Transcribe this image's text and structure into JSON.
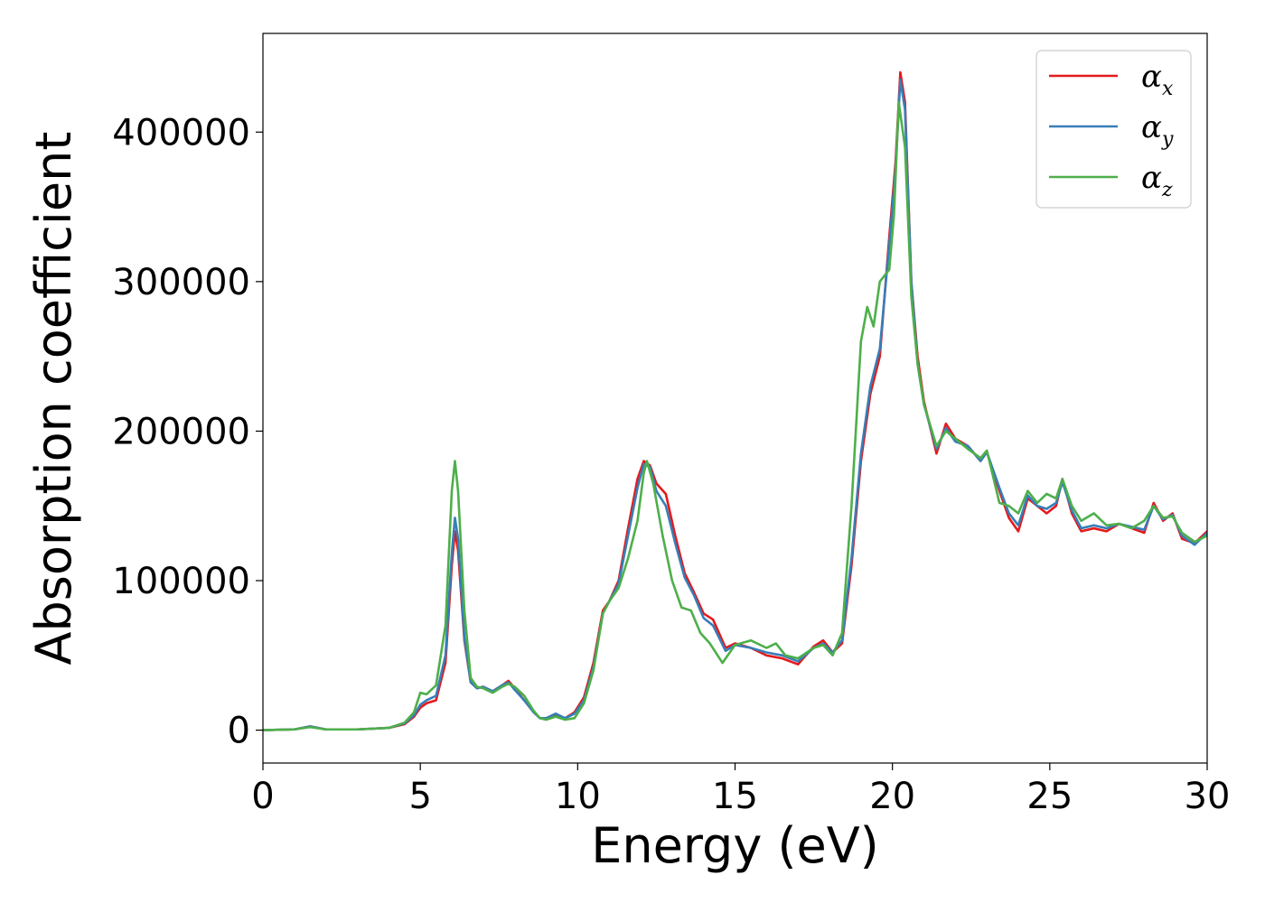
{
  "chart_data": {
    "type": "line",
    "title": "",
    "xlabel": "Energy (eV)",
    "ylabel": "Absorption coefficient",
    "xlim": [
      0,
      30
    ],
    "ylim": [
      -22000,
      466000
    ],
    "xticks": [
      0,
      5,
      10,
      15,
      20,
      25,
      30
    ],
    "xtick_labels": [
      "0",
      "5",
      "10",
      "15",
      "20",
      "25",
      "30"
    ],
    "yticks": [
      0,
      100000,
      200000,
      300000,
      400000
    ],
    "ytick_labels": [
      "0",
      "100000",
      "200000",
      "300000",
      "400000"
    ],
    "grid": false,
    "legend_position": "top-right",
    "series": [
      {
        "name": "α_x",
        "label_main": "α",
        "label_sub": "x",
        "color": "#e41a1c",
        "points": [
          [
            0,
            0
          ],
          [
            1,
            500
          ],
          [
            1.5,
            2500
          ],
          [
            2,
            500
          ],
          [
            3,
            500
          ],
          [
            4,
            1500
          ],
          [
            4.5,
            4000
          ],
          [
            4.8,
            9000
          ],
          [
            5.0,
            15000
          ],
          [
            5.2,
            18000
          ],
          [
            5.5,
            20000
          ],
          [
            5.8,
            45000
          ],
          [
            6.0,
            110000
          ],
          [
            6.1,
            133000
          ],
          [
            6.2,
            120000
          ],
          [
            6.4,
            60000
          ],
          [
            6.6,
            32000
          ],
          [
            6.8,
            28000
          ],
          [
            7.0,
            29000
          ],
          [
            7.3,
            26000
          ],
          [
            7.6,
            30000
          ],
          [
            7.8,
            33000
          ],
          [
            8.0,
            28000
          ],
          [
            8.3,
            20000
          ],
          [
            8.6,
            12000
          ],
          [
            8.8,
            8000
          ],
          [
            9.0,
            8000
          ],
          [
            9.3,
            10000
          ],
          [
            9.6,
            8000
          ],
          [
            9.9,
            12000
          ],
          [
            10.2,
            22000
          ],
          [
            10.5,
            45000
          ],
          [
            10.8,
            80000
          ],
          [
            11.0,
            86000
          ],
          [
            11.3,
            100000
          ],
          [
            11.6,
            135000
          ],
          [
            11.9,
            168000
          ],
          [
            12.1,
            180000
          ],
          [
            12.3,
            177000
          ],
          [
            12.5,
            165000
          ],
          [
            12.8,
            158000
          ],
          [
            13.1,
            130000
          ],
          [
            13.4,
            105000
          ],
          [
            13.7,
            92000
          ],
          [
            14.0,
            78000
          ],
          [
            14.3,
            74000
          ],
          [
            14.7,
            55000
          ],
          [
            15.0,
            58000
          ],
          [
            15.5,
            55000
          ],
          [
            16.0,
            50000
          ],
          [
            16.5,
            48000
          ],
          [
            17.0,
            44000
          ],
          [
            17.5,
            56000
          ],
          [
            17.8,
            60000
          ],
          [
            18.1,
            52000
          ],
          [
            18.4,
            58000
          ],
          [
            18.7,
            110000
          ],
          [
            19.0,
            180000
          ],
          [
            19.3,
            225000
          ],
          [
            19.6,
            250000
          ],
          [
            19.9,
            330000
          ],
          [
            20.1,
            380000
          ],
          [
            20.25,
            440000
          ],
          [
            20.4,
            420000
          ],
          [
            20.6,
            300000
          ],
          [
            20.8,
            250000
          ],
          [
            21.0,
            220000
          ],
          [
            21.4,
            185000
          ],
          [
            21.7,
            205000
          ],
          [
            22.0,
            195000
          ],
          [
            22.4,
            190000
          ],
          [
            22.8,
            180000
          ],
          [
            23.0,
            186000
          ],
          [
            23.4,
            160000
          ],
          [
            23.7,
            142000
          ],
          [
            24.0,
            133000
          ],
          [
            24.3,
            155000
          ],
          [
            24.6,
            150000
          ],
          [
            24.9,
            145000
          ],
          [
            25.2,
            150000
          ],
          [
            25.4,
            168000
          ],
          [
            25.7,
            145000
          ],
          [
            26.0,
            133000
          ],
          [
            26.4,
            135000
          ],
          [
            26.8,
            133000
          ],
          [
            27.2,
            138000
          ],
          [
            27.6,
            135000
          ],
          [
            28.0,
            132000
          ],
          [
            28.3,
            152000
          ],
          [
            28.6,
            140000
          ],
          [
            28.9,
            145000
          ],
          [
            29.2,
            128000
          ],
          [
            29.6,
            125000
          ],
          [
            30.0,
            133000
          ]
        ]
      },
      {
        "name": "α_y",
        "label_main": "α",
        "label_sub": "y",
        "color": "#377eb8",
        "points": [
          [
            0,
            0
          ],
          [
            1,
            500
          ],
          [
            1.5,
            2500
          ],
          [
            2,
            500
          ],
          [
            3,
            500
          ],
          [
            4,
            1500
          ],
          [
            4.5,
            4500
          ],
          [
            4.8,
            10000
          ],
          [
            5.0,
            17000
          ],
          [
            5.2,
            20000
          ],
          [
            5.5,
            23000
          ],
          [
            5.8,
            50000
          ],
          [
            6.0,
            118000
          ],
          [
            6.1,
            142000
          ],
          [
            6.2,
            128000
          ],
          [
            6.4,
            62000
          ],
          [
            6.6,
            32000
          ],
          [
            6.8,
            28000
          ],
          [
            7.0,
            29000
          ],
          [
            7.3,
            26000
          ],
          [
            7.6,
            30000
          ],
          [
            7.8,
            32000
          ],
          [
            8.0,
            27000
          ],
          [
            8.3,
            20000
          ],
          [
            8.6,
            12000
          ],
          [
            8.8,
            8000
          ],
          [
            9.0,
            8000
          ],
          [
            9.3,
            11000
          ],
          [
            9.6,
            8000
          ],
          [
            9.9,
            11000
          ],
          [
            10.2,
            20000
          ],
          [
            10.5,
            42000
          ],
          [
            10.8,
            78000
          ],
          [
            11.0,
            86000
          ],
          [
            11.3,
            98000
          ],
          [
            11.6,
            130000
          ],
          [
            11.9,
            162000
          ],
          [
            12.1,
            178000
          ],
          [
            12.3,
            176000
          ],
          [
            12.5,
            160000
          ],
          [
            12.8,
            150000
          ],
          [
            13.1,
            125000
          ],
          [
            13.4,
            102000
          ],
          [
            13.7,
            90000
          ],
          [
            14.0,
            75000
          ],
          [
            14.3,
            70000
          ],
          [
            14.7,
            53000
          ],
          [
            15.0,
            57000
          ],
          [
            15.5,
            55000
          ],
          [
            16.0,
            52000
          ],
          [
            16.5,
            50000
          ],
          [
            17.0,
            46000
          ],
          [
            17.5,
            55000
          ],
          [
            17.8,
            58000
          ],
          [
            18.1,
            52000
          ],
          [
            18.4,
            60000
          ],
          [
            18.7,
            115000
          ],
          [
            19.0,
            185000
          ],
          [
            19.3,
            230000
          ],
          [
            19.6,
            255000
          ],
          [
            19.9,
            325000
          ],
          [
            20.1,
            375000
          ],
          [
            20.25,
            435000
          ],
          [
            20.4,
            415000
          ],
          [
            20.6,
            300000
          ],
          [
            20.8,
            245000
          ],
          [
            21.0,
            218000
          ],
          [
            21.4,
            188000
          ],
          [
            21.7,
            202000
          ],
          [
            22.0,
            193000
          ],
          [
            22.4,
            190000
          ],
          [
            22.8,
            180000
          ],
          [
            23.0,
            186000
          ],
          [
            23.4,
            162000
          ],
          [
            23.7,
            145000
          ],
          [
            24.0,
            137000
          ],
          [
            24.3,
            157000
          ],
          [
            24.6,
            150000
          ],
          [
            24.9,
            148000
          ],
          [
            25.2,
            152000
          ],
          [
            25.4,
            166000
          ],
          [
            25.7,
            147000
          ],
          [
            26.0,
            135000
          ],
          [
            26.4,
            137000
          ],
          [
            26.8,
            135000
          ],
          [
            27.2,
            138000
          ],
          [
            27.6,
            136000
          ],
          [
            28.0,
            134000
          ],
          [
            28.3,
            150000
          ],
          [
            28.6,
            141000
          ],
          [
            28.9,
            144000
          ],
          [
            29.2,
            130000
          ],
          [
            29.6,
            124000
          ],
          [
            30.0,
            132000
          ]
        ]
      },
      {
        "name": "α_z",
        "label_main": "α",
        "label_sub": "z",
        "color": "#4daf4a",
        "points": [
          [
            0,
            0
          ],
          [
            1,
            500
          ],
          [
            1.5,
            2000
          ],
          [
            2,
            500
          ],
          [
            3,
            500
          ],
          [
            4,
            1500
          ],
          [
            4.5,
            5000
          ],
          [
            4.8,
            12000
          ],
          [
            5.0,
            25000
          ],
          [
            5.2,
            24000
          ],
          [
            5.5,
            30000
          ],
          [
            5.8,
            70000
          ],
          [
            6.0,
            160000
          ],
          [
            6.1,
            180000
          ],
          [
            6.2,
            160000
          ],
          [
            6.4,
            80000
          ],
          [
            6.6,
            35000
          ],
          [
            6.8,
            29000
          ],
          [
            7.0,
            28000
          ],
          [
            7.3,
            25000
          ],
          [
            7.6,
            29000
          ],
          [
            7.8,
            31000
          ],
          [
            8.0,
            29000
          ],
          [
            8.3,
            23000
          ],
          [
            8.6,
            13000
          ],
          [
            8.8,
            8000
          ],
          [
            9.0,
            7000
          ],
          [
            9.3,
            9000
          ],
          [
            9.6,
            7000
          ],
          [
            9.9,
            8000
          ],
          [
            10.2,
            18000
          ],
          [
            10.5,
            40000
          ],
          [
            10.8,
            78000
          ],
          [
            11.0,
            86000
          ],
          [
            11.3,
            95000
          ],
          [
            11.6,
            115000
          ],
          [
            11.9,
            140000
          ],
          [
            12.1,
            172000
          ],
          [
            12.2,
            180000
          ],
          [
            12.4,
            165000
          ],
          [
            12.7,
            130000
          ],
          [
            13.0,
            100000
          ],
          [
            13.3,
            82000
          ],
          [
            13.6,
            80000
          ],
          [
            13.9,
            65000
          ],
          [
            14.2,
            58000
          ],
          [
            14.6,
            45000
          ],
          [
            15.0,
            57000
          ],
          [
            15.5,
            60000
          ],
          [
            16.0,
            55000
          ],
          [
            16.3,
            58000
          ],
          [
            16.6,
            50000
          ],
          [
            17.0,
            48000
          ],
          [
            17.5,
            55000
          ],
          [
            17.8,
            57000
          ],
          [
            18.1,
            50000
          ],
          [
            18.4,
            65000
          ],
          [
            18.7,
            150000
          ],
          [
            19.0,
            260000
          ],
          [
            19.2,
            283000
          ],
          [
            19.4,
            270000
          ],
          [
            19.6,
            300000
          ],
          [
            19.9,
            308000
          ],
          [
            20.05,
            345000
          ],
          [
            20.2,
            420000
          ],
          [
            20.4,
            390000
          ],
          [
            20.6,
            290000
          ],
          [
            20.8,
            245000
          ],
          [
            21.0,
            218000
          ],
          [
            21.4,
            190000
          ],
          [
            21.7,
            200000
          ],
          [
            22.0,
            195000
          ],
          [
            22.4,
            188000
          ],
          [
            22.8,
            182000
          ],
          [
            23.0,
            187000
          ],
          [
            23.4,
            152000
          ],
          [
            23.7,
            150000
          ],
          [
            24.0,
            145000
          ],
          [
            24.3,
            160000
          ],
          [
            24.6,
            152000
          ],
          [
            24.9,
            158000
          ],
          [
            25.2,
            155000
          ],
          [
            25.4,
            168000
          ],
          [
            25.7,
            150000
          ],
          [
            26.0,
            140000
          ],
          [
            26.4,
            145000
          ],
          [
            26.8,
            137000
          ],
          [
            27.2,
            138000
          ],
          [
            27.6,
            135000
          ],
          [
            28.0,
            140000
          ],
          [
            28.3,
            150000
          ],
          [
            28.6,
            142000
          ],
          [
            28.9,
            143000
          ],
          [
            29.2,
            132000
          ],
          [
            29.6,
            126000
          ],
          [
            30.0,
            130000
          ]
        ]
      }
    ]
  }
}
